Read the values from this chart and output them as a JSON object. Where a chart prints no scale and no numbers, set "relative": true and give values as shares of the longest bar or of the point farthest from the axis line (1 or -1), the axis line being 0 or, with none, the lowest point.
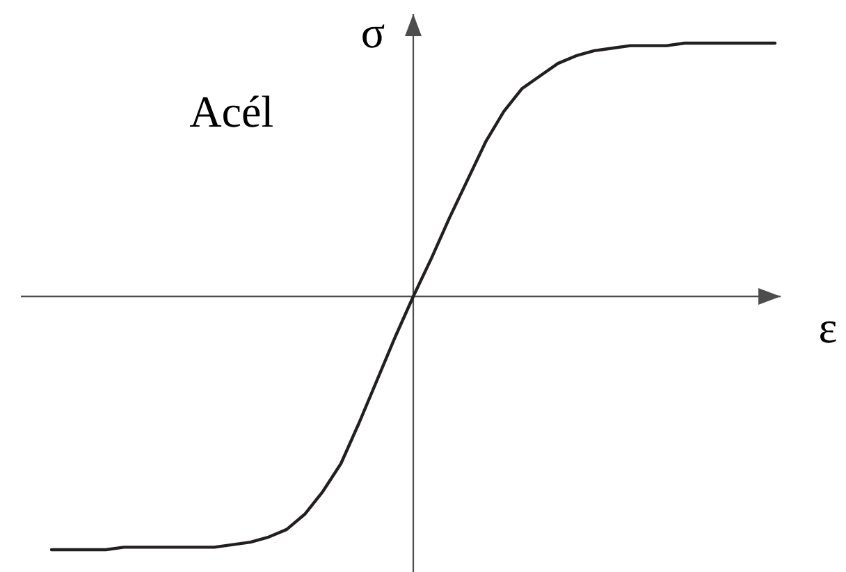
{
  "chart_data": {
    "type": "line",
    "relative": true,
    "xlabel": "ε",
    "ylabel": "σ",
    "annotations": [
      "Acél"
    ],
    "categories": [
      null,
      null,
      null,
      null,
      null,
      null,
      null,
      null,
      null,
      null,
      null,
      null,
      null,
      null,
      null,
      null,
      null,
      null,
      null,
      null,
      null,
      null,
      null,
      null,
      null,
      null,
      null,
      null,
      null,
      null,
      null,
      null,
      null,
      null,
      null,
      null,
      null,
      null,
      null,
      null,
      null
    ],
    "values": [
      -1,
      -1,
      -1,
      -1,
      -0.99,
      -0.99,
      -0.99,
      -0.99,
      -0.99,
      -0.99,
      -0.98,
      -0.97,
      -0.95,
      -0.92,
      -0.86,
      -0.77,
      -0.66,
      -0.5,
      -0.33,
      -0.16,
      0,
      0.15,
      0.31,
      0.46,
      0.61,
      0.73,
      0.82,
      0.87,
      0.92,
      0.95,
      0.97,
      0.98,
      0.99,
      0.99,
      0.99,
      1,
      1,
      1,
      1,
      1,
      1
    ],
    "color": "#231f20",
    "marker": "none",
    "line_style": "solid"
  }
}
